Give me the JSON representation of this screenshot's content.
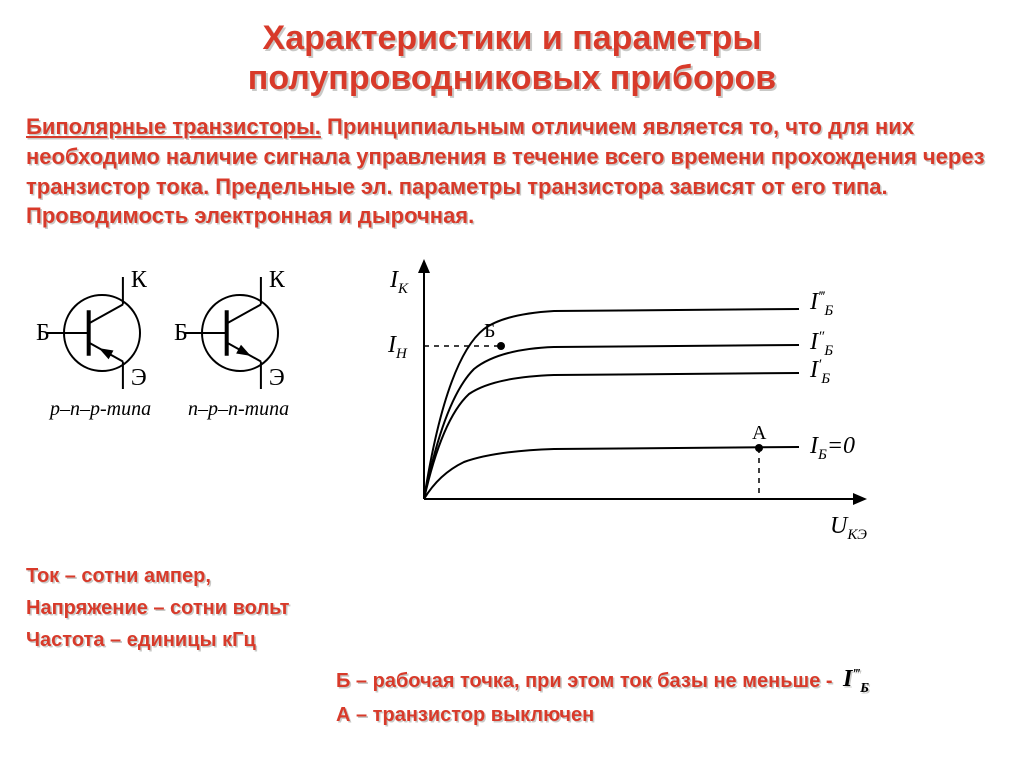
{
  "colors": {
    "title": "#d83a2a",
    "body": "#d83a2a",
    "shadow": "#c9c9c7",
    "black": "#000000",
    "gray": "#4a4a4a"
  },
  "fonts": {
    "title_size": 34,
    "body_size": 22,
    "readings_size": 20,
    "footer_size": 20,
    "serif_size": 24,
    "serif_small": 20
  },
  "title": {
    "line1": "Характеристики и параметры",
    "line2": "полупроводниковых приборов"
  },
  "subtitle": "Биполярные транзисторы.",
  "paragraph": " Принципиальным отличием является то, что для них необходимо наличие сигнала управления в течение всего времени прохождения через транзистор тока. Предельные эл. параметры транзистора зависят от его типа. Проводимость электронная и дырочная.",
  "symbols": {
    "left": {
      "B": "Б",
      "K": "К",
      "E": "Э",
      "caption": "p–n–p-типа"
    },
    "right": {
      "B": "Б",
      "K": "К",
      "E": "Э",
      "caption": "n–p–n-типа"
    }
  },
  "chart": {
    "y_axis_label_main": "I",
    "y_axis_label_sub": "К",
    "y_tick_main": "I",
    "y_tick_sub": "Н",
    "x_axis_label_main": "U",
    "x_axis_label_sub": "КЭ",
    "point_B": "Б",
    "point_A": "A",
    "curves": [
      {
        "label_main": "I",
        "label_sub": "Б",
        "primes": "‴"
      },
      {
        "label_main": "I",
        "label_sub": "Б",
        "primes": "″"
      },
      {
        "label_main": "I",
        "label_sub": "Б",
        "primes": "′"
      },
      {
        "label_main": "I",
        "label_sub": "Б",
        "suffix": "=0"
      }
    ],
    "curve_paths": [
      "M 70 250 Q 92 110 130 80 Q 150 65 200 62 L 445 60",
      "M 70 250 Q 90 150 120 120 Q 145 100 200 98 L 445 96",
      "M 70 250 Q 88 170 115 145 Q 140 128 200 126 L 445 124",
      "M 70 250 Q 85 225 110 213 Q 140 202 200 200 L 445 198"
    ]
  },
  "readings": {
    "line1": "Ток – сотни ампер,",
    "line2": "Напряжение – сотни вольт",
    "line3": "Частота – единицы кГц"
  },
  "footer": {
    "pointB": "Б – рабочая точка, при этом ток базы не меньше -",
    "pointB_sym": {
      "main": "I",
      "sub": "Б",
      "primes": "‴"
    },
    "pointA": "А – транзистор выключен"
  }
}
